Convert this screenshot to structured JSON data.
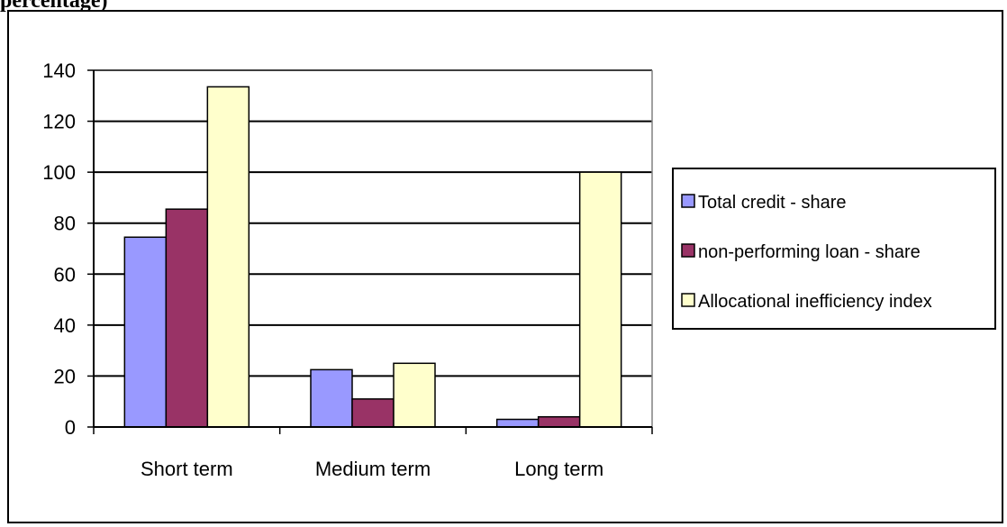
{
  "header": {
    "text": "percentage)"
  },
  "chart_data": {
    "type": "bar",
    "categories": [
      "Short term",
      "Medium term",
      "Long term"
    ],
    "series": [
      {
        "name": "Total credit - share",
        "values": [
          74.5,
          22.5,
          3.0
        ],
        "color": "#9999ff"
      },
      {
        "name": "non-performing loan - share",
        "values": [
          85.5,
          11.0,
          4.0
        ],
        "color": "#993366"
      },
      {
        "name": "Allocational inefficiency index",
        "values": [
          133.5,
          25.0,
          100.0
        ],
        "color": "#ffffcc"
      }
    ],
    "ylim": [
      0,
      140
    ],
    "yticks": [
      "0",
      "20",
      "40",
      "60",
      "80",
      "100",
      "120",
      "140"
    ],
    "grid": true,
    "legend_position": "right"
  }
}
